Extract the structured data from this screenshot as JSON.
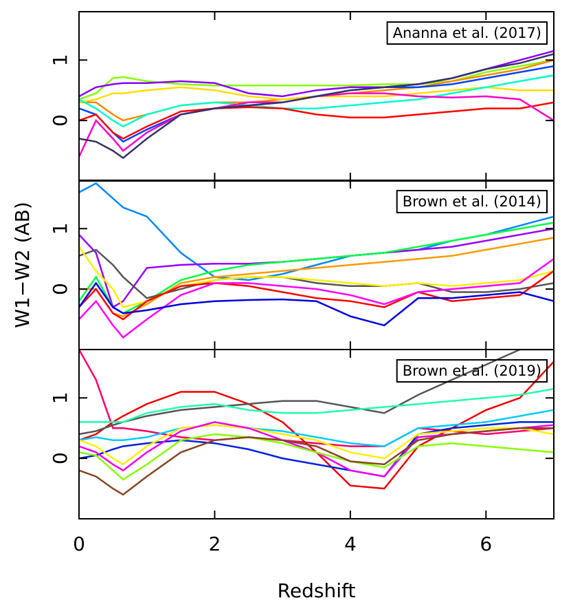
{
  "chart_data": [
    {
      "type": "line",
      "title": "Ananna et al. (2017)",
      "x": [
        0,
        0.25,
        0.5,
        0.65,
        1,
        1.5,
        2,
        2.5,
        3,
        3.5,
        4,
        4.5,
        5,
        5.5,
        6,
        6.5,
        7
      ],
      "xlim": [
        0,
        7
      ],
      "xticks": [
        0,
        2,
        4,
        6
      ],
      "ylim": [
        -1,
        1.8
      ],
      "yticks": [
        0,
        1
      ],
      "series": [
        {
          "color": "#88ff00",
          "values": [
            0.35,
            0.45,
            0.7,
            0.72,
            0.65,
            0.6,
            0.58,
            0.58,
            0.58,
            0.58,
            0.58,
            0.6,
            0.6,
            0.65,
            0.8,
            0.9,
            1.0
          ]
        },
        {
          "color": "#8800ff",
          "values": [
            0.4,
            0.55,
            0.6,
            0.62,
            0.62,
            0.65,
            0.62,
            0.45,
            0.4,
            0.5,
            0.55,
            0.55,
            0.6,
            0.7,
            0.85,
            1.0,
            1.15
          ]
        },
        {
          "color": "#ff8800",
          "values": [
            0.3,
            0.3,
            0.1,
            0,
            0.1,
            0.25,
            0.3,
            0.3,
            0.35,
            0.4,
            0.45,
            0.5,
            0.55,
            0.65,
            0.75,
            0.85,
            1.0
          ]
        },
        {
          "color": "#ffdd00",
          "values": [
            0.3,
            0.35,
            0.45,
            0.45,
            0.5,
            0.55,
            0.5,
            0.4,
            0.35,
            0.4,
            0.4,
            0.4,
            0.45,
            0.5,
            0.55,
            0.5,
            0.5
          ]
        },
        {
          "color": "#00ffcc",
          "values": [
            0.35,
            0.2,
            0,
            -0.1,
            0.1,
            0.25,
            0.3,
            0.25,
            0.2,
            0.2,
            0.25,
            0.3,
            0.35,
            0.45,
            0.55,
            0.65,
            0.75
          ]
        },
        {
          "color": "#0044ff",
          "values": [
            0.2,
            0.1,
            -0.2,
            -0.35,
            -0.15,
            0.1,
            0.2,
            0.25,
            0.3,
            0.4,
            0.5,
            0.55,
            0.55,
            0.6,
            0.7,
            0.8,
            0.9
          ]
        },
        {
          "color": "#ff0000",
          "values": [
            0,
            0.1,
            -0.2,
            -0.3,
            -0.1,
            0.15,
            0.2,
            0.22,
            0.2,
            0.1,
            0.05,
            0.05,
            0.1,
            0.15,
            0.2,
            0.2,
            0.3
          ]
        },
        {
          "color": "#ff00cc",
          "values": [
            -0.6,
            0,
            -0.3,
            -0.5,
            -0.2,
            0.1,
            0.2,
            0.3,
            0.3,
            0.4,
            0.45,
            0.45,
            0.4,
            0.38,
            0.4,
            0.35,
            0
          ]
        },
        {
          "color": "#333366",
          "values": [
            -0.3,
            -0.35,
            -0.5,
            -0.62,
            -0.3,
            0.1,
            0.2,
            0.25,
            0.3,
            0.4,
            0.5,
            0.55,
            0.6,
            0.7,
            0.85,
            0.95,
            1.1
          ]
        }
      ]
    },
    {
      "type": "line",
      "title": "Brown et al. (2014)",
      "ylabel": "W1−W2 (AB)",
      "x": [
        0,
        0.25,
        0.5,
        0.65,
        1,
        1.5,
        2,
        2.5,
        3,
        3.5,
        4,
        4.5,
        5,
        5.5,
        6,
        6.5,
        7
      ],
      "xlim": [
        0,
        7
      ],
      "xticks": [
        0,
        2,
        4,
        6
      ],
      "ylim": [
        -1,
        1.8
      ],
      "yticks": [
        0,
        1
      ],
      "series": [
        {
          "color": "#0088ff",
          "values": [
            1.6,
            1.75,
            1.5,
            1.35,
            1.2,
            0.6,
            0.2,
            0.15,
            0.25,
            0.4,
            0.55,
            0.6,
            0.65,
            0.8,
            0.9,
            1.05,
            1.2
          ]
        },
        {
          "color": "#9900ff",
          "values": [
            0.9,
            0.6,
            -0.3,
            -0.2,
            0.35,
            0.4,
            0.42,
            0.42,
            0.45,
            0.5,
            0.55,
            0.6,
            0.65,
            0.7,
            0.8,
            0.9,
            1.0
          ]
        },
        {
          "color": "#00ff44",
          "values": [
            -0.2,
            0.2,
            -0.3,
            -0.4,
            -0.2,
            0.15,
            0.3,
            0.4,
            0.45,
            0.5,
            0.55,
            0.6,
            0.7,
            0.8,
            0.9,
            1.0,
            1.1
          ]
        },
        {
          "color": "#ff9900",
          "values": [
            0,
            0,
            -0.4,
            -0.45,
            -0.25,
            0.1,
            0.2,
            0.25,
            0.3,
            0.35,
            0.4,
            0.45,
            0.5,
            0.55,
            0.65,
            0.75,
            0.85
          ]
        },
        {
          "color": "#555555",
          "values": [
            0.55,
            0.65,
            0.4,
            0.2,
            -0.15,
            0,
            0.15,
            0.2,
            0.2,
            0.1,
            0.05,
            0.05,
            0.1,
            -0.05,
            -0.05,
            0,
            0.1
          ]
        },
        {
          "color": "#ffee00",
          "values": [
            0.7,
            0.3,
            0,
            -0.3,
            -0.2,
            0.05,
            0.15,
            0.2,
            0.2,
            0.15,
            0.1,
            0.05,
            0.1,
            0.05,
            0.1,
            0.15,
            0.3
          ]
        },
        {
          "color": "#ff0000",
          "values": [
            -0.3,
            0,
            -0.4,
            -0.5,
            -0.2,
            0.05,
            0.1,
            0.05,
            -0.05,
            -0.15,
            -0.2,
            -0.3,
            -0.05,
            -0.2,
            -0.15,
            -0.1,
            0.3
          ]
        },
        {
          "color": "#ff00ff",
          "values": [
            -0.5,
            -0.2,
            -0.6,
            -0.8,
            -0.5,
            -0.1,
            0.1,
            0.1,
            0.05,
            0,
            -0.1,
            -0.25,
            -0.05,
            0,
            0.05,
            0.1,
            0.5
          ]
        },
        {
          "color": "#0000dd",
          "values": [
            -0.3,
            0.1,
            -0.3,
            -0.4,
            -0.35,
            -0.25,
            -0.2,
            -0.18,
            -0.17,
            -0.2,
            -0.45,
            -0.6,
            -0.15,
            -0.15,
            -0.1,
            -0.05,
            -0.2
          ]
        }
      ]
    },
    {
      "type": "line",
      "title": "Brown et al. (2019)",
      "xlabel": "Redshift",
      "x": [
        0,
        0.25,
        0.5,
        0.65,
        1,
        1.5,
        2,
        2.5,
        3,
        3.5,
        4,
        4.5,
        5,
        5.5,
        6,
        6.5,
        7
      ],
      "xlim": [
        0,
        7
      ],
      "xticks": [
        0,
        2,
        4,
        6
      ],
      "ylim": [
        -1,
        1.8
      ],
      "yticks": [
        0,
        1
      ],
      "series": [
        {
          "color": "#ff0066",
          "values": [
            1.8,
            1.3,
            0.5,
            0.5,
            0.45,
            0.35,
            0.3,
            0.35,
            0.3,
            0.25,
            0.2,
            0.2,
            0.5,
            0.45,
            0.4,
            0.45,
            0.5
          ]
        },
        {
          "color": "#ee0000",
          "values": [
            0.3,
            0.4,
            0.6,
            0.7,
            0.9,
            1.1,
            1.1,
            0.9,
            0.6,
            0.1,
            -0.45,
            -0.5,
            0.2,
            0.5,
            0.8,
            1.0,
            1.6
          ]
        },
        {
          "color": "#555555",
          "values": [
            0.4,
            0.45,
            0.55,
            0.6,
            0.7,
            0.8,
            0.85,
            0.9,
            0.95,
            0.95,
            0.85,
            0.75,
            1.05,
            1.3,
            1.55,
            1.8,
            1.8
          ]
        },
        {
          "color": "#22ffaa",
          "values": [
            0.6,
            0.6,
            0.6,
            0.6,
            0.75,
            0.85,
            0.9,
            0.8,
            0.75,
            0.75,
            0.8,
            0.85,
            0.9,
            0.95,
            1.0,
            1.05,
            1.15
          ]
        },
        {
          "color": "#00ccff",
          "values": [
            0.3,
            0.35,
            0.3,
            0.3,
            0.35,
            0.5,
            0.55,
            0.5,
            0.45,
            0.35,
            0.25,
            0.2,
            0.5,
            0.55,
            0.6,
            0.7,
            0.8
          ]
        },
        {
          "color": "#0022dd",
          "values": [
            0,
            0.05,
            0.15,
            0.2,
            0.25,
            0.3,
            0.25,
            0.15,
            0,
            -0.1,
            -0.2,
            -0.3,
            0.4,
            0.5,
            0.55,
            0.6,
            0.6
          ]
        },
        {
          "color": "#ffee00",
          "values": [
            0.3,
            0.2,
            0,
            -0.1,
            0.2,
            0.5,
            0.55,
            0.5,
            0.4,
            0.3,
            0.1,
            0,
            0.4,
            0.45,
            0.5,
            0.5,
            0.4
          ]
        },
        {
          "color": "#ee00ee",
          "values": [
            0.2,
            0.1,
            -0.1,
            -0.2,
            0.1,
            0.45,
            0.6,
            0.5,
            0.3,
            0.1,
            -0.2,
            -0.3,
            0.35,
            0.4,
            0.45,
            0.5,
            0.55
          ]
        },
        {
          "color": "#88ff00",
          "values": [
            0.1,
            0.05,
            -0.2,
            -0.35,
            -0.1,
            0.3,
            0.4,
            0.35,
            0.25,
            0.1,
            -0.05,
            -0.15,
            0.2,
            0.25,
            0.2,
            0.15,
            0.1
          ]
        },
        {
          "color": "#884422",
          "values": [
            -0.2,
            -0.3,
            -0.5,
            -0.6,
            -0.3,
            0.1,
            0.3,
            0.35,
            0.3,
            0.2,
            -0.05,
            -0.1,
            0.3,
            0.4,
            0.45,
            0.5,
            0.5
          ]
        }
      ]
    }
  ]
}
